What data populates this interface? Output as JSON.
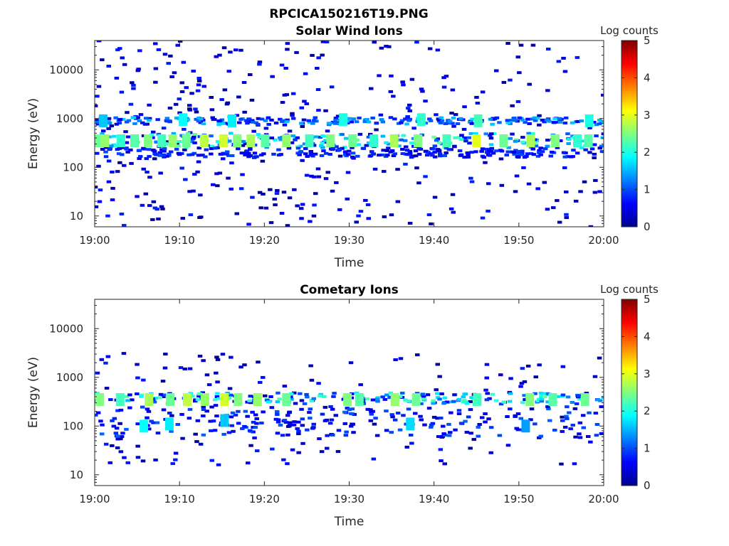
{
  "figure_title": "RPCICA150216T19.PNG",
  "colorbar": {
    "label": "Log counts",
    "ticks": [
      "0",
      "1",
      "2",
      "3",
      "4",
      "5"
    ],
    "range": [
      0,
      5
    ],
    "colormap": "jet"
  },
  "chart_data": [
    {
      "type": "heatmap",
      "title": "Solar Wind Ions",
      "xlabel": "Time",
      "ylabel": "Energy (eV)",
      "xticks": [
        "19:00",
        "19:10",
        "19:20",
        "19:30",
        "19:40",
        "19:50",
        "20:00"
      ],
      "yticks": [
        "10",
        "100",
        "1000",
        "10000"
      ],
      "xlim": [
        "19:00",
        "20:00"
      ],
      "ylim": [
        6,
        40000
      ],
      "yscale": "log",
      "value_range": [
        0,
        5
      ],
      "dominant_band_eV": [
        250,
        500
      ],
      "secondary_band_eV": [
        700,
        1100
      ],
      "cells": [
        {
          "t": 0.5,
          "e": 350,
          "v": 2.4
        },
        {
          "t": 1.2,
          "e": 350,
          "v": 2.6
        },
        {
          "t": 3.1,
          "e": 350,
          "v": 2.1
        },
        {
          "t": 4.7,
          "e": 350,
          "v": 2.3
        },
        {
          "t": 6.3,
          "e": 350,
          "v": 2.5
        },
        {
          "t": 7.9,
          "e": 350,
          "v": 2.2
        },
        {
          "t": 9.2,
          "e": 350,
          "v": 2.6
        },
        {
          "t": 10.8,
          "e": 350,
          "v": 2.4
        },
        {
          "t": 12.9,
          "e": 350,
          "v": 2.8
        },
        {
          "t": 15.2,
          "e": 350,
          "v": 2.9
        },
        {
          "t": 16.8,
          "e": 350,
          "v": 2.5
        },
        {
          "t": 18.4,
          "e": 350,
          "v": 2.7
        },
        {
          "t": 20.1,
          "e": 350,
          "v": 2.3
        },
        {
          "t": 22.6,
          "e": 350,
          "v": 2.6
        },
        {
          "t": 25.3,
          "e": 350,
          "v": 2.2
        },
        {
          "t": 27.8,
          "e": 350,
          "v": 2.5
        },
        {
          "t": 30.4,
          "e": 350,
          "v": 2.4
        },
        {
          "t": 32.9,
          "e": 350,
          "v": 2.1
        },
        {
          "t": 35.3,
          "e": 350,
          "v": 2.7
        },
        {
          "t": 38.1,
          "e": 350,
          "v": 2.5
        },
        {
          "t": 41.5,
          "e": 350,
          "v": 2.2
        },
        {
          "t": 45.0,
          "e": 350,
          "v": 3.0
        },
        {
          "t": 48.2,
          "e": 350,
          "v": 2.4
        },
        {
          "t": 51.4,
          "e": 350,
          "v": 2.7
        },
        {
          "t": 54.3,
          "e": 350,
          "v": 2.5
        },
        {
          "t": 56.9,
          "e": 350,
          "v": 2.1
        },
        {
          "t": 58.2,
          "e": 350,
          "v": 2.3
        },
        {
          "t": 1.0,
          "e": 900,
          "v": 1.6
        },
        {
          "t": 10.4,
          "e": 950,
          "v": 1.9
        },
        {
          "t": 16.2,
          "e": 900,
          "v": 1.8
        },
        {
          "t": 29.3,
          "e": 950,
          "v": 2.0
        },
        {
          "t": 38.5,
          "e": 950,
          "v": 2.1
        },
        {
          "t": 45.2,
          "e": 900,
          "v": 2.2
        },
        {
          "t": 58.3,
          "e": 900,
          "v": 2.0
        }
      ]
    },
    {
      "type": "heatmap",
      "title": "Cometary Ions",
      "xlabel": "Time",
      "ylabel": "Energy (eV)",
      "xticks": [
        "19:00",
        "19:10",
        "19:20",
        "19:30",
        "19:40",
        "19:50",
        "20:00"
      ],
      "yticks": [
        "10",
        "100",
        "1000",
        "10000"
      ],
      "xlim": [
        "19:00",
        "20:00"
      ],
      "ylim": [
        6,
        40000
      ],
      "yscale": "log",
      "value_range": [
        0,
        5
      ],
      "dominant_band_eV": [
        280,
        480
      ],
      "cells": [
        {
          "t": 0.6,
          "e": 350,
          "v": 2.5
        },
        {
          "t": 3.0,
          "e": 350,
          "v": 2.2
        },
        {
          "t": 6.4,
          "e": 350,
          "v": 2.7
        },
        {
          "t": 8.9,
          "e": 350,
          "v": 2.4
        },
        {
          "t": 10.9,
          "e": 350,
          "v": 2.8
        },
        {
          "t": 13.0,
          "e": 350,
          "v": 2.6
        },
        {
          "t": 15.3,
          "e": 350,
          "v": 2.9
        },
        {
          "t": 16.9,
          "e": 350,
          "v": 2.5
        },
        {
          "t": 19.2,
          "e": 350,
          "v": 2.6
        },
        {
          "t": 22.6,
          "e": 350,
          "v": 2.4
        },
        {
          "t": 29.8,
          "e": 350,
          "v": 2.5
        },
        {
          "t": 31.2,
          "e": 350,
          "v": 2.3
        },
        {
          "t": 35.4,
          "e": 350,
          "v": 2.6
        },
        {
          "t": 37.9,
          "e": 350,
          "v": 2.4
        },
        {
          "t": 45.1,
          "e": 350,
          "v": 2.2
        },
        {
          "t": 51.3,
          "e": 350,
          "v": 2.5
        },
        {
          "t": 54.0,
          "e": 350,
          "v": 2.3
        },
        {
          "t": 57.8,
          "e": 350,
          "v": 2.4
        },
        {
          "t": 5.8,
          "e": 100,
          "v": 1.9
        },
        {
          "t": 8.8,
          "e": 110,
          "v": 1.8
        },
        {
          "t": 15.3,
          "e": 130,
          "v": 1.6
        },
        {
          "t": 37.2,
          "e": 110,
          "v": 1.7
        },
        {
          "t": 50.8,
          "e": 100,
          "v": 1.4
        }
      ]
    }
  ]
}
